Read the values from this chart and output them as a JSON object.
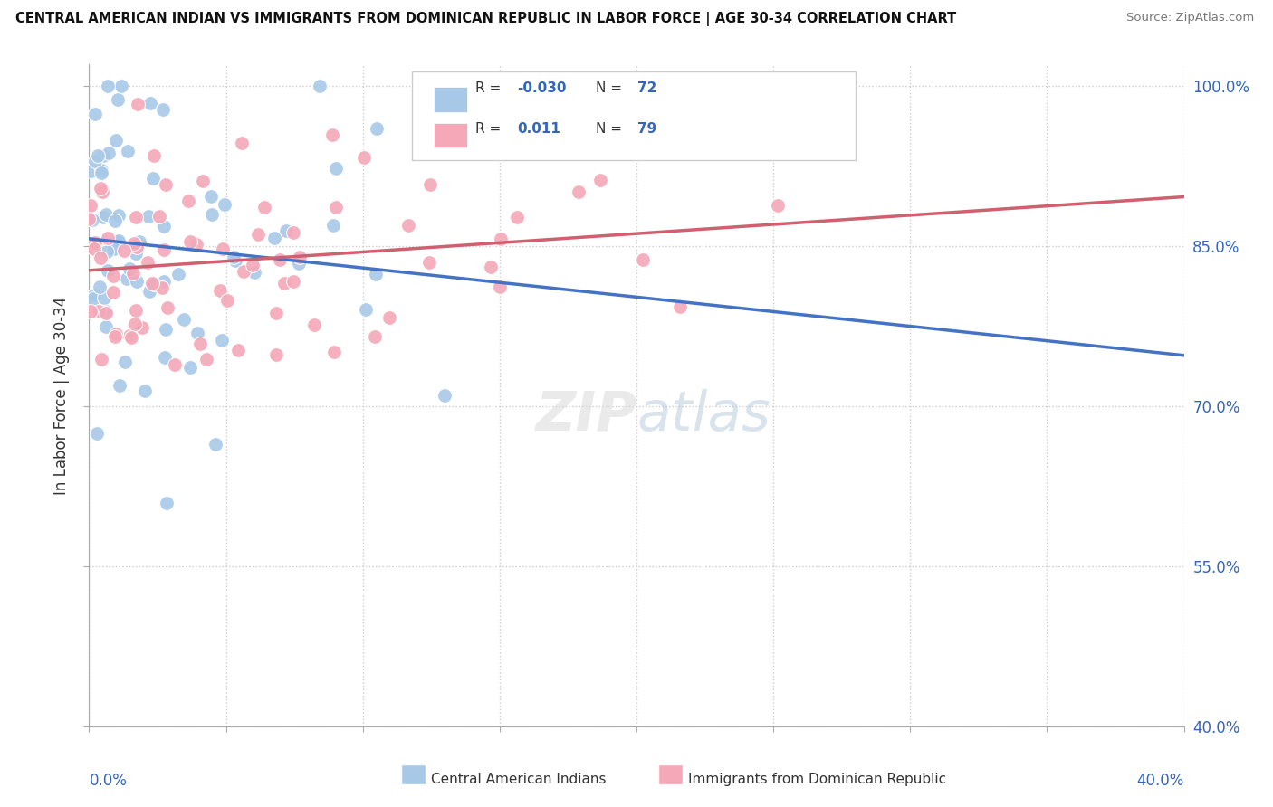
{
  "title": "CENTRAL AMERICAN INDIAN VS IMMIGRANTS FROM DOMINICAN REPUBLIC IN LABOR FORCE | AGE 30-34 CORRELATION CHART",
  "source": "Source: ZipAtlas.com",
  "ylabel": "In Labor Force | Age 30-34",
  "blue_R": -0.03,
  "blue_N": 72,
  "pink_R": 0.011,
  "pink_N": 79,
  "blue_color": "#a8c8e8",
  "pink_color": "#f4a8b8",
  "blue_line_color": "#4472c4",
  "pink_line_color": "#d06070",
  "xmin": 0.0,
  "xmax": 0.4,
  "ymin": 0.4,
  "ymax": 1.02,
  "right_yticks": [
    1.0,
    0.85,
    0.7,
    0.55,
    0.4
  ],
  "right_yticklabels": [
    "100.0%",
    "85.0%",
    "70.0%",
    "55.0%",
    "40.0%"
  ],
  "legend_label_blue": "Central American Indians",
  "legend_label_pink": "Immigrants from Dominican Republic",
  "watermark_zip": "ZIP",
  "watermark_atlas": "atlas"
}
